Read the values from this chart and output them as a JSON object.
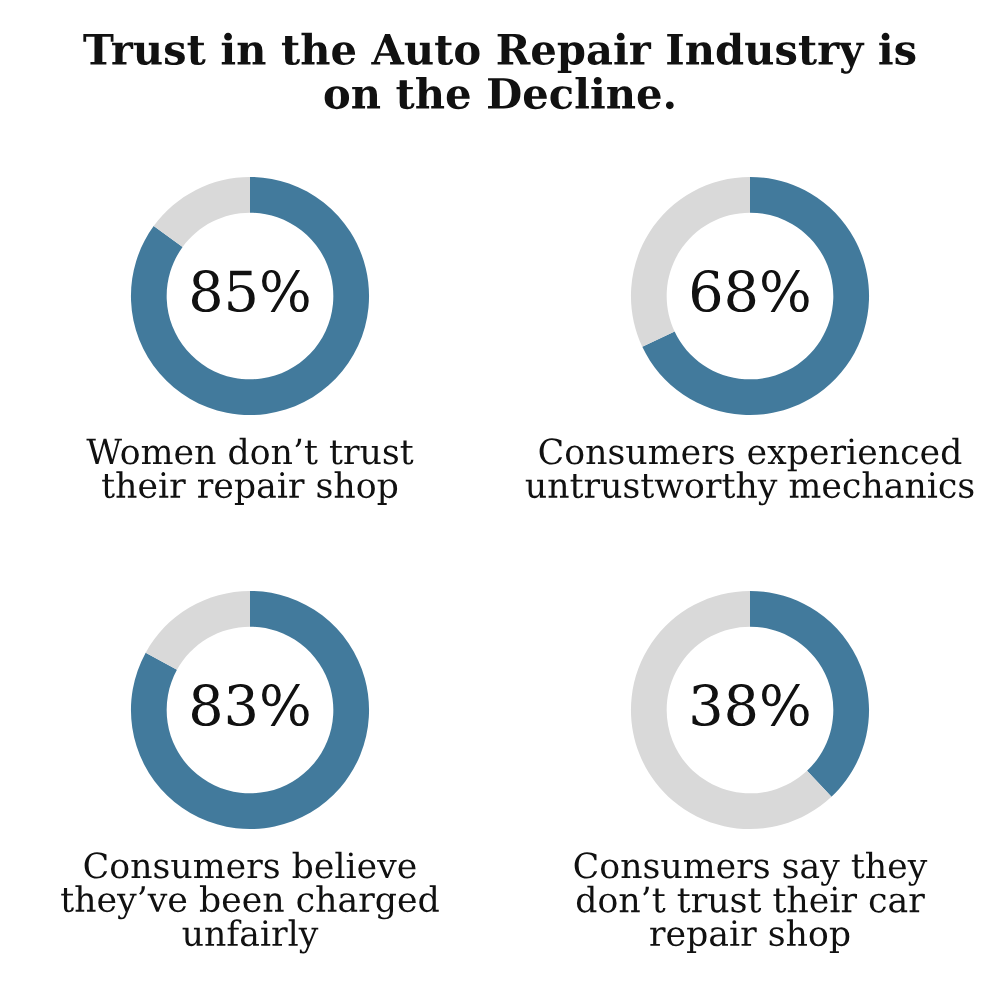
{
  "chart_data": [
    {
      "type": "donut",
      "title": "Trust in the Auto Repair Industry is\non the Decline.",
      "categories": [
        null,
        null
      ],
      "values": [
        85,
        15
      ],
      "colors": [
        "#427a9c",
        "#d9d9d9"
      ],
      "value_labels": [
        "85%",
        null
      ],
      "xlabel": "Women don’t trust\ntheir repair shop"
    },
    {
      "type": "donut",
      "categories": [
        null,
        null
      ],
      "values": [
        68,
        32
      ],
      "colors": [
        "#427a9c",
        "#d9d9d9"
      ],
      "value_labels": [
        "68%",
        null
      ],
      "xlabel": "Consumers experienced\nuntrustworthy mechanics"
    },
    {
      "type": "donut",
      "categories": [
        null,
        null
      ],
      "values": [
        83,
        17
      ],
      "colors": [
        "#427a9c",
        "#d9d9d9"
      ],
      "value_labels": [
        "83%",
        null
      ],
      "xlabel": "Consumers believe\nthey’ve been charged\nunfairly"
    },
    {
      "type": "donut",
      "categories": [
        null,
        null
      ],
      "values": [
        38,
        62
      ],
      "colors": [
        "#427a9c",
        "#d9d9d9"
      ],
      "value_labels": [
        "38%",
        null
      ],
      "xlabel": "Consumers say they\ndon’t trust their car\nrepair shop"
    }
  ]
}
